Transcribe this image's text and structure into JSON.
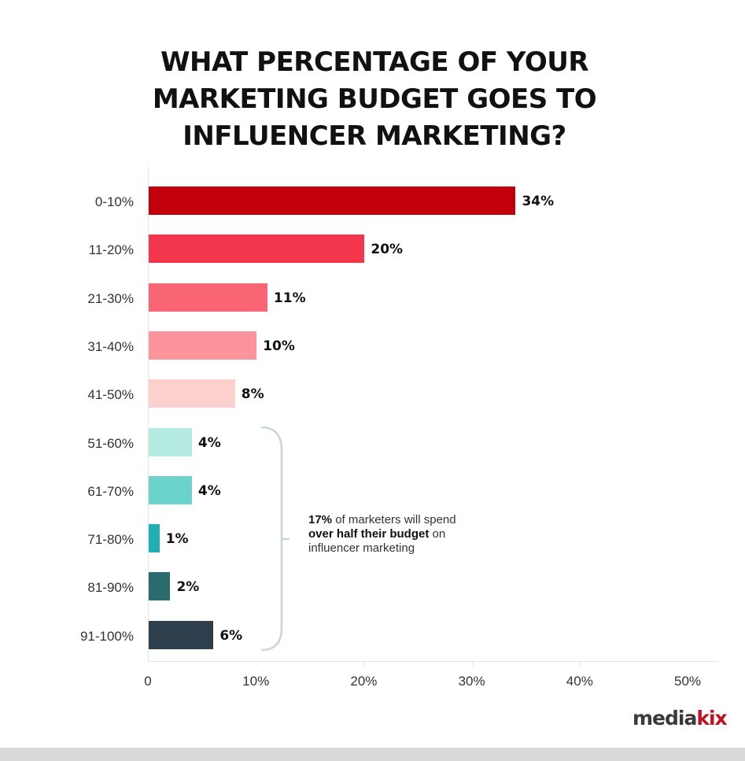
{
  "title_lines": [
    "WHAT PERCENTAGE OF YOUR",
    "MARKETING BUDGET GOES TO",
    "INFLUENCER MARKETING?"
  ],
  "annotation": {
    "bold1": "17%",
    "text1": " of marketers will spend",
    "bold2": "over half their budget",
    "text2": " on",
    "text3": "influencer marketing"
  },
  "logo": {
    "part1": "media",
    "part2": "kix"
  },
  "colors": {
    "0-10%": "#c2000b",
    "11-20%": "#f4364c",
    "21-30%": "#f96574",
    "31-40%": "#fb949b",
    "41-50%": "#fcd0cd",
    "51-60%": "#b6ebe1",
    "61-70%": "#6cd3ca",
    "71-80%": "#1fb0b3",
    "81-90%": "#2a6b70",
    "91-100%": "#2d3f4c"
  },
  "chart_data": {
    "type": "bar",
    "orientation": "horizontal",
    "title": "WHAT PERCENTAGE OF YOUR MARKETING BUDGET GOES TO INFLUENCER MARKETING?",
    "categories": [
      "0-10%",
      "11-20%",
      "21-30%",
      "31-40%",
      "41-50%",
      "51-60%",
      "61-70%",
      "71-80%",
      "81-90%",
      "91-100%"
    ],
    "values": [
      34,
      20,
      11,
      10,
      8,
      4,
      4,
      1,
      2,
      6
    ],
    "value_labels": [
      "34%",
      "20%",
      "11%",
      "10%",
      "8%",
      "4%",
      "4%",
      "1%",
      "2%",
      "6%"
    ],
    "xlabel": "",
    "ylabel": "",
    "xlim": [
      0,
      53
    ],
    "x_ticks": [
      "0",
      "10%",
      "20%",
      "30%",
      "40%",
      "50%"
    ],
    "grid": false,
    "legend": null,
    "annotations": [
      "17% of marketers will spend over half their budget on influencer marketing"
    ]
  }
}
